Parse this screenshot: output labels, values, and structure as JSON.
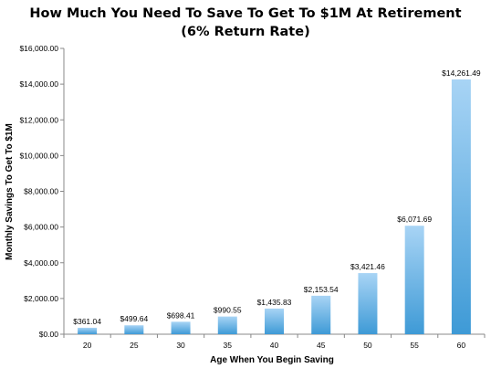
{
  "chart_data": {
    "type": "bar",
    "title_line1": "How Much You Need To Save To Get To $1M At Retirement",
    "title_line2": "(6% Return Rate)",
    "xlabel": "Age When You Begin Saving",
    "ylabel": "Monthly Savings To Get To $1M",
    "categories": [
      "20",
      "25",
      "30",
      "35",
      "40",
      "45",
      "50",
      "55",
      "60"
    ],
    "values": [
      361.04,
      499.64,
      698.41,
      990.55,
      1435.83,
      2153.54,
      3421.46,
      6071.69,
      14261.49
    ],
    "data_labels": [
      "$361.04",
      "$499.64",
      "$698.41",
      "$990.55",
      "$1,435.83",
      "$2,153.54",
      "$3,421.46",
      "$6,071.69",
      "$14,261.49"
    ],
    "yticks": [
      0,
      2000,
      4000,
      6000,
      8000,
      10000,
      12000,
      14000,
      16000
    ],
    "ytick_labels": [
      "$0.00",
      "$2,000.00",
      "$4,000.00",
      "$6,000.00",
      "$8,000.00",
      "$10,000.00",
      "$12,000.00",
      "$14,000.00",
      "$16,000.00"
    ],
    "ylim": [
      0,
      16000
    ],
    "grid": false,
    "legend": "none",
    "bar_color_top": "#a8d4f5",
    "bar_color_bottom": "#3e9ad6"
  }
}
